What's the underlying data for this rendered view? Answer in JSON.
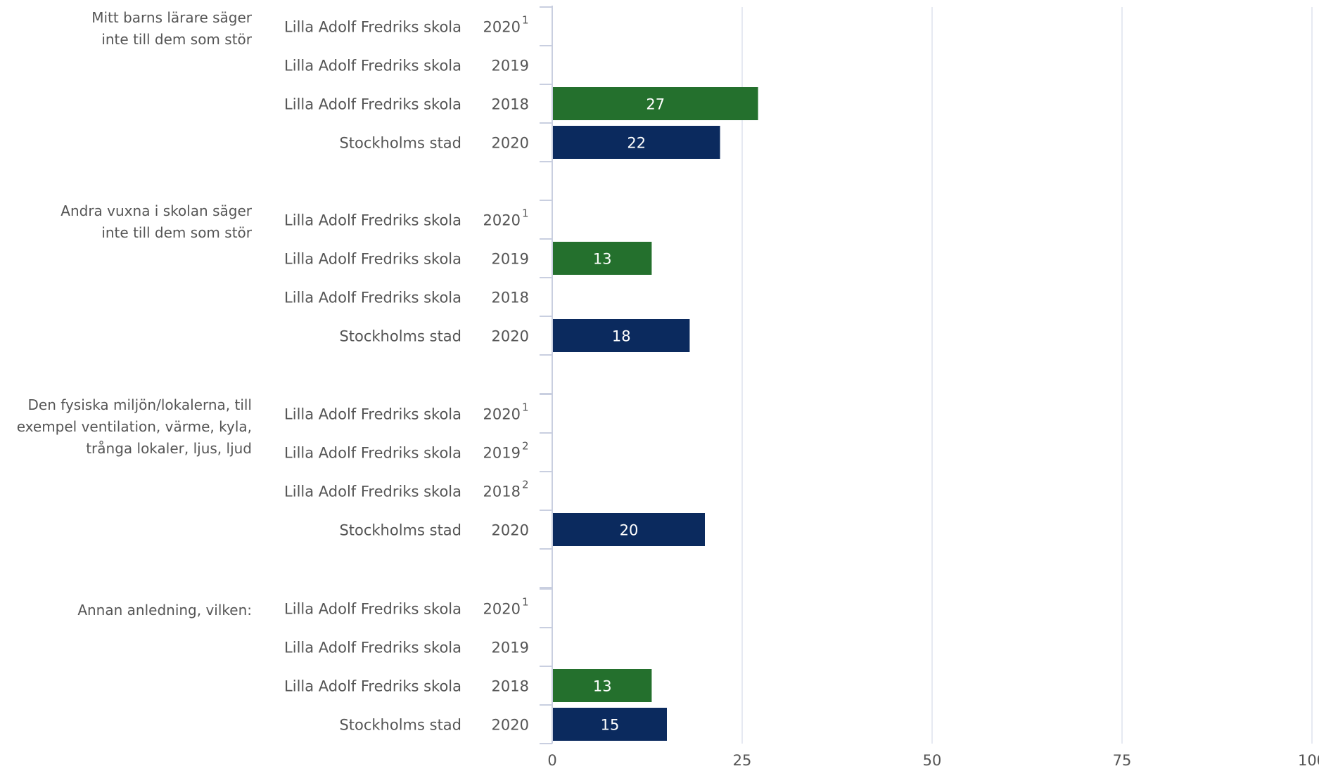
{
  "chart_data": {
    "type": "bar",
    "orientation": "horizontal",
    "title": "",
    "xlabel": "",
    "ylabel": "",
    "xlim": [
      0,
      100
    ],
    "xticks": [
      "0",
      "25",
      "50",
      "75",
      "100"
    ],
    "grid": true,
    "colors": {
      "school": "#24702d",
      "city": "#0b2a5e"
    },
    "groups": [
      {
        "label_lines": [
          "Mitt barns lärare säger",
          "inte till dem som stör"
        ],
        "rows": [
          {
            "entity": "Lilla Adolf Fredriks skola",
            "year": "2020",
            "note": "1",
            "value": null,
            "value_label": "",
            "kind": "school"
          },
          {
            "entity": "Lilla Adolf Fredriks skola",
            "year": "2019",
            "note": "",
            "value": null,
            "value_label": "",
            "kind": "school"
          },
          {
            "entity": "Lilla Adolf Fredriks skola",
            "year": "2018",
            "note": "",
            "value": 27,
            "value_label": "27",
            "kind": "school"
          },
          {
            "entity": "Stockholms stad",
            "year": "2020",
            "note": "",
            "value": 22,
            "value_label": "22",
            "kind": "city"
          }
        ]
      },
      {
        "label_lines": [
          "Andra vuxna i skolan säger",
          "inte till dem som stör"
        ],
        "rows": [
          {
            "entity": "Lilla Adolf Fredriks skola",
            "year": "2020",
            "note": "1",
            "value": null,
            "value_label": "",
            "kind": "school"
          },
          {
            "entity": "Lilla Adolf Fredriks skola",
            "year": "2019",
            "note": "",
            "value": 13,
            "value_label": "13",
            "kind": "school"
          },
          {
            "entity": "Lilla Adolf Fredriks skola",
            "year": "2018",
            "note": "",
            "value": null,
            "value_label": "",
            "kind": "school"
          },
          {
            "entity": "Stockholms stad",
            "year": "2020",
            "note": "",
            "value": 18,
            "value_label": "18",
            "kind": "city"
          }
        ]
      },
      {
        "label_lines": [
          "Den fysiska miljön/lokalerna, till",
          "exempel ventilation, värme, kyla,",
          "trånga lokaler, ljus, ljud"
        ],
        "rows": [
          {
            "entity": "Lilla Adolf Fredriks skola",
            "year": "2020",
            "note": "1",
            "value": null,
            "value_label": "",
            "kind": "school"
          },
          {
            "entity": "Lilla Adolf Fredriks skola",
            "year": "2019",
            "note": "2",
            "value": null,
            "value_label": "",
            "kind": "school"
          },
          {
            "entity": "Lilla Adolf Fredriks skola",
            "year": "2018",
            "note": "2",
            "value": null,
            "value_label": "",
            "kind": "school"
          },
          {
            "entity": "Stockholms stad",
            "year": "2020",
            "note": "",
            "value": 20,
            "value_label": "20",
            "kind": "city"
          }
        ]
      },
      {
        "label_lines": [
          "Annan anledning, vilken:"
        ],
        "rows": [
          {
            "entity": "Lilla Adolf Fredriks skola",
            "year": "2020",
            "note": "1",
            "value": null,
            "value_label": "",
            "kind": "school"
          },
          {
            "entity": "Lilla Adolf Fredriks skola",
            "year": "2019",
            "note": "",
            "value": null,
            "value_label": "",
            "kind": "school"
          },
          {
            "entity": "Lilla Adolf Fredriks skola",
            "year": "2018",
            "note": "",
            "value": 13,
            "value_label": "13",
            "kind": "school"
          },
          {
            "entity": "Stockholms stad",
            "year": "2020",
            "note": "",
            "value": 15,
            "value_label": "15",
            "kind": "city"
          }
        ]
      }
    ]
  }
}
